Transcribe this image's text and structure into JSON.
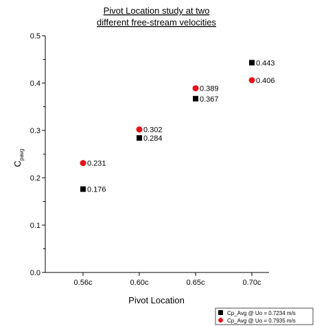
{
  "chart_data": {
    "type": "scatter",
    "title": [
      "Pivot Location study at two",
      "different free-stream velocities"
    ],
    "xlabel": "Pivot Location",
    "ylabel_main": "C",
    "ylabel_sub": "pavg",
    "categories": [
      "0.56c",
      "0.60c",
      "0.65c",
      "0.70c"
    ],
    "ylim": [
      0,
      0.5
    ],
    "yticks": [
      "0.0",
      "0.1",
      "0.2",
      "0.3",
      "0.4",
      "0.5"
    ],
    "ytick_values": [
      0,
      0.1,
      0.2,
      0.3,
      0.4,
      0.5
    ],
    "grid": false,
    "legend_position": "bottom-right",
    "series": [
      {
        "name": "Cp_Avg @ Uo = 0.7234 m/s",
        "marker": "square",
        "color": "#000000",
        "values": [
          0.176,
          0.284,
          0.367,
          0.443
        ],
        "labels": [
          "0.176",
          "0.284",
          "0.367",
          "0.443"
        ]
      },
      {
        "name": "Cp_Avg @ Uo = 0.7935 m/s",
        "marker": "circle",
        "color": "#e8131b",
        "values": [
          0.231,
          0.302,
          0.389,
          0.406
        ],
        "labels": [
          "0.231",
          "0.302",
          "0.389",
          "0.406"
        ]
      }
    ]
  }
}
